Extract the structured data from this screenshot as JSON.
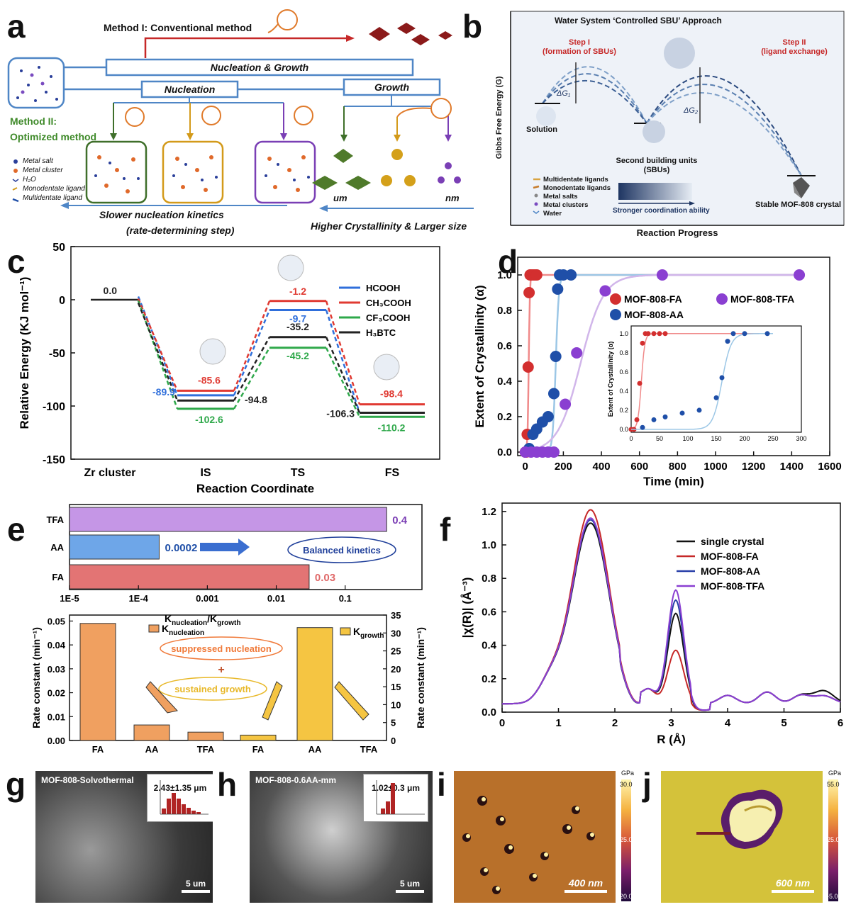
{
  "panels": {
    "a": {
      "letter": "a",
      "method1": "Method I: Conventional method",
      "nucleation_growth": "Nucleation & Growth",
      "nucleation": "Nucleation",
      "growth": "Growth",
      "method2_line1": "Method II:",
      "method2_line2": "Optimized method",
      "legend": [
        "Metal salt",
        "Metal cluster",
        "H₂O",
        "Monodentate ligand",
        "Multidentate ligand"
      ],
      "slower": "Slower nucleation kinetics",
      "rds": "(rate-determining step)",
      "um": "um",
      "nm": "nm",
      "higher": "Higher Crystallinity & Larger size"
    },
    "b": {
      "letter": "b",
      "title": "Water System ‘Controlled SBU’ Approach",
      "step1": "Step I",
      "step1_sub": "(formation of SBUs)",
      "step2": "Step II",
      "step2_sub": "(ligand exchange)",
      "dg1": "ΔG₁",
      "dg2": "ΔG₂",
      "solution": "Solution",
      "sbu1": "Second building units",
      "sbu2": "(SBUs)",
      "stable": "Stable MOF-808 crystal",
      "ylabel": "Gibbs Free Energy (G)",
      "xlabel": "Reaction Progress",
      "legend": [
        "Multidentate ligands",
        "Monodentate ligands",
        "Metal salts",
        "Metal clusters",
        "Water"
      ],
      "stronger": "Stronger coordination ability"
    },
    "c": {
      "letter": "c"
    },
    "d": {
      "letter": "d"
    },
    "e": {
      "letter": "e"
    },
    "f": {
      "letter": "f"
    },
    "g": {
      "letter": "g",
      "label": "MOF-808-Solvothermal",
      "inset": "2.43±1.35 μm",
      "scale": "5 um"
    },
    "h": {
      "letter": "h",
      "label": "MOF-808-0.6AA-mm",
      "inset": "1.02±0.3 μm",
      "scale": "5 um"
    },
    "i": {
      "letter": "i",
      "scale": "400 nm",
      "cb_unit": "GPa",
      "cb_top": "30.0",
      "cb_mid": "25.0",
      "cb_bot": "20.0"
    },
    "j": {
      "letter": "j",
      "scale": "600 nm",
      "cb_unit": "GPa",
      "cb_top": "55.0",
      "cb_mid": "25.0",
      "cb_bot": "-5.00"
    }
  },
  "chart_data": [
    {
      "id": "c",
      "type": "line",
      "xlabel": "Reaction Coordinate",
      "ylabel": "Relative Energy (KJ mol⁻¹)",
      "categories": [
        "Zr cluster",
        "IS",
        "TS",
        "FS"
      ],
      "ylim": [
        -150,
        50
      ],
      "yticks": [
        50,
        0,
        -50,
        -100,
        -150
      ],
      "series": [
        {
          "name": "HCOOH",
          "color": "#2f6fdb",
          "values": [
            0.0,
            -89.9,
            -9.7,
            -106.3
          ]
        },
        {
          "name": "CH₃COOH",
          "color": "#e03a32",
          "values": [
            0.0,
            -85.6,
            -1.2,
            -98.4
          ]
        },
        {
          "name": "CF₃COOH",
          "color": "#2ea84a",
          "values": [
            0.0,
            -102.6,
            -45.2,
            -110.2
          ]
        },
        {
          "name": "H₃BTC",
          "color": "#222222",
          "values": [
            0.0,
            -94.8,
            -35.2,
            -106.3
          ]
        }
      ],
      "labels": [
        {
          "text": "0.0",
          "color": "#222222"
        },
        {
          "text": "-89.9",
          "color": "#2f6fdb"
        },
        {
          "text": "-85.6",
          "color": "#e03a32"
        },
        {
          "text": "-102.6",
          "color": "#2ea84a"
        },
        {
          "text": "-94.8",
          "color": "#222222"
        },
        {
          "text": "-1.2",
          "color": "#e03a32"
        },
        {
          "text": "-9.7",
          "color": "#2f6fdb"
        },
        {
          "text": "-35.2",
          "color": "#222222"
        },
        {
          "text": "-45.2",
          "color": "#2ea84a"
        },
        {
          "text": "-98.4",
          "color": "#e03a32"
        },
        {
          "text": "-106.3",
          "color": "#222222"
        },
        {
          "text": "-110.2",
          "color": "#2ea84a"
        }
      ]
    },
    {
      "id": "d",
      "type": "scatter",
      "xlabel": "Time (min)",
      "ylabel": "Extent of Crystallinity (α)",
      "xlim": [
        -40,
        1600
      ],
      "ylim": [
        -0.02,
        1.1
      ],
      "xticks": [
        0,
        200,
        400,
        600,
        800,
        1000,
        1200,
        1400,
        1600
      ],
      "yticks": [
        0.0,
        0.2,
        0.4,
        0.6,
        0.8,
        1.0
      ],
      "series": [
        {
          "name": "MOF-808-FA",
          "color": "#d32f2f",
          "fit": "#f08a8a",
          "x": [
            0,
            5,
            10,
            15,
            20,
            25,
            30,
            40,
            50,
            60
          ],
          "y": [
            0.0,
            0.0,
            0.1,
            0.48,
            0.9,
            1.0,
            1.0,
            1.0,
            1.0,
            1.0
          ]
        },
        {
          "name": "MOF-808-AA",
          "color": "#1f4fa8",
          "fit": "#9cc7e6",
          "x": [
            20,
            40,
            60,
            90,
            120,
            150,
            160,
            170,
            180,
            200,
            240
          ],
          "y": [
            0.02,
            0.1,
            0.13,
            0.17,
            0.2,
            0.33,
            0.54,
            0.92,
            1.0,
            1.0,
            1.0
          ]
        },
        {
          "name": "MOF-808-TFA",
          "color": "#8a3fd1",
          "fit": "#d1b6ea",
          "x": [
            0,
            30,
            60,
            90,
            120,
            150,
            210,
            270,
            420,
            720,
            1440
          ],
          "y": [
            0.0,
            0.0,
            0.0,
            0.0,
            0.0,
            0.0,
            0.27,
            0.56,
            0.91,
            1.0,
            1.0
          ]
        }
      ],
      "inset": {
        "ylabel": "Extent of Crystallinity (α)",
        "xlim": [
          0,
          300
        ],
        "ylim": [
          -0.03,
          1.08
        ],
        "xticks": [
          0,
          50,
          100,
          150,
          200,
          250,
          300
        ],
        "yticks": [
          0.0,
          0.2,
          0.4,
          0.6,
          0.8,
          1.0
        ]
      }
    },
    {
      "id": "e-top",
      "type": "bar",
      "orientation": "horizontal",
      "log_scale": true,
      "categories": [
        "TFA",
        "AA",
        "FA"
      ],
      "values": [
        0.4,
        0.0002,
        0.03
      ],
      "value_labels": [
        "0.4",
        "0.0002",
        "0.03"
      ],
      "colors": [
        "#c596e6",
        "#6ea6e8",
        "#e37474"
      ],
      "label_colors": [
        "#7b3fb5",
        "#1f4fa8",
        "#e06a6a"
      ],
      "xticks": [
        "1E-5",
        "1E-4",
        "0.001",
        "0.01",
        "0.1"
      ],
      "annotation": "Balanced kinetics"
    },
    {
      "id": "e-bottom",
      "type": "bar",
      "categories": [
        "FA",
        "AA",
        "TFA",
        "FA",
        "AA",
        "TFA"
      ],
      "series": [
        {
          "name": "K_nucleation",
          "axis": "left",
          "color": "#f0a060",
          "values": [
            0.049,
            0.0065,
            0.0035,
            null,
            null,
            null
          ]
        },
        {
          "name": "K_growth",
          "axis": "right",
          "color": "#f5c542",
          "values": [
            null,
            null,
            null,
            1.5,
            31.5,
            0
          ]
        }
      ],
      "ylabel_left": "Rate constant (min⁻¹)",
      "ylabel_right": "Rate constant (min⁻¹)",
      "ylim_left": [
        0,
        0.0525
      ],
      "ylim_right": [
        0,
        35
      ],
      "yticks_left": [
        "0.00",
        "0.01",
        "0.02",
        "0.03",
        "0.04",
        "0.05"
      ],
      "yticks_right": [
        "0",
        "5",
        "10",
        "15",
        "20",
        "25",
        "30",
        "35"
      ],
      "title_ratio": "K",
      "title_ratio_sub": "nucleation",
      "title_ratio_tail": "/K",
      "title_ratio_sub2": "growth",
      "legend_nuc": "K",
      "legend_nuc_sub": "nucleation",
      "legend_growth": "K",
      "legend_growth_sub": "growth",
      "cloud1": "suppressed nucleation",
      "plus": "+",
      "cloud2": "sustained growth"
    },
    {
      "id": "f",
      "type": "line",
      "xlabel": "R (Å)",
      "ylabel": "|χ(R)| (Å⁻³)",
      "xlim": [
        0,
        6
      ],
      "ylim": [
        0,
        1.25
      ],
      "xticks": [
        0,
        1,
        2,
        3,
        4,
        5,
        6
      ],
      "yticks": [
        0.0,
        0.2,
        0.4,
        0.6,
        0.8,
        1.0,
        1.2
      ],
      "series": [
        {
          "name": "single crystal",
          "color": "#111111",
          "h1": 1.08,
          "h2": 0.54
        },
        {
          "name": "MOF-808-FA",
          "color": "#c62828",
          "h1": 1.16,
          "h2": 0.32
        },
        {
          "name": "MOF-808-AA",
          "color": "#283fa8",
          "h1": 1.1,
          "h2": 0.62
        },
        {
          "name": "MOF-808-TFA",
          "color": "#8a3fd1",
          "h1": 1.11,
          "h2": 0.68
        }
      ]
    }
  ]
}
